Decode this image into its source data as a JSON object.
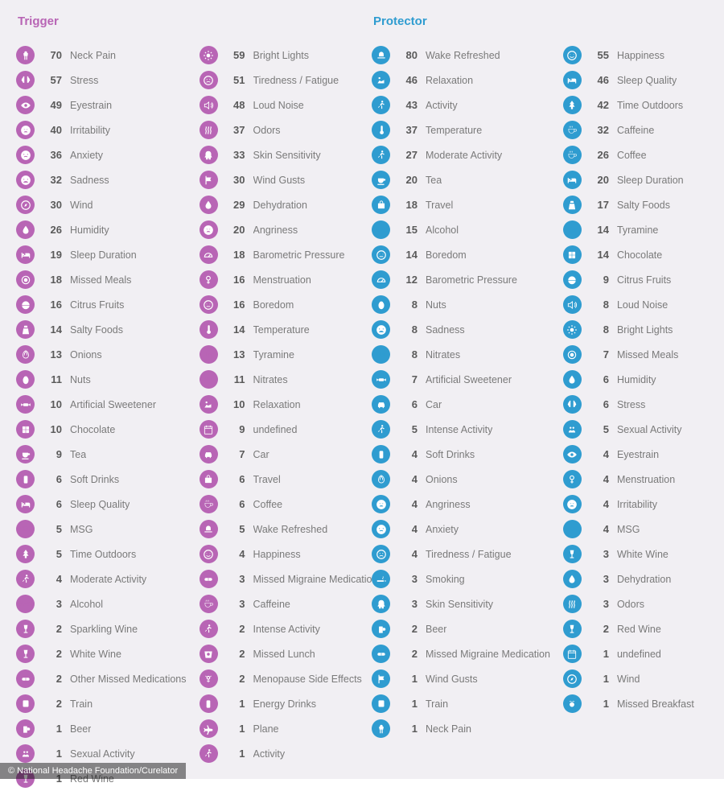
{
  "background_color": "#f1eff3",
  "credit": "© National Headache Foundation/Curelator",
  "icons": {
    "neck": "<svg viewBox='0 0 24 24' fill='#fff'><path d='M12 3a3 3 0 013 3v1h2l-1 6h-1v8h-2v-8h-2v8h-2v-8H8l-1-6h2V6a3 3 0 013-3z'/></svg>",
    "brain": "<svg viewBox='0 0 24 24' fill='#fff'><path d='M9 3a3 3 0 00-3 3 3 3 0 00-2 3 3 3 0 001 5 3 3 0 003 3h1V3zm6 0v14h1a3 3 0 003-3 3 3 0 001-5 3 3 0 00-2-3 3 3 0 00-3-3z'/></svg>",
    "eye": "<svg viewBox='0 0 24 24' fill='#fff'><path d='M12 6C6 6 2 12 2 12s4 6 10 6 10-6 10-6-4-6-10-6zm0 9a3 3 0 110-6 3 3 0 010 6z'/></svg>",
    "anger": "<svg viewBox='0 0 24 24' fill='#fff'><path d='M12 2a10 10 0 100 20 10 10 0 000-20zM7 9l4 1-1 1-3-2zm10 0l-3 2-1-1 4-1zm-9 7c1-2 3-2 4-2s3 0 4 2H8z'/></svg>",
    "anxious": "<svg viewBox='0 0 24 24' fill='#fff'><path d='M12 2a10 10 0 100 20 10 10 0 000-20zM8 9a1 1 0 110 2 1 1 0 010-2zm8 0a1 1 0 110 2 1 1 0 010-2zm-8 6c2-2 6-2 8 0l-1 1c-1-1-5-1-6 0z'/></svg>",
    "sad": "<svg viewBox='0 0 24 24' fill='#fff'><path d='M12 2a10 10 0 100 20 10 10 0 000-20zM8 9a1 1 0 110 2 1 1 0 010-2zm8 0a1 1 0 110 2 1 1 0 010-2zm-9 8c1-3 4-3 5-3s4 0 5 3H7z'/></svg>",
    "wind": "<svg viewBox='0 0 24 24' fill='#fff'><path d='M4 8h10a3 3 0 10-3-3h2a1 1 0 111 1H4zm0 4h14a3 3 0 11-3 3h2a1 1 0 101-1H4zm0 4h7a2 2 0 11-2 2h2v-0H4z'/></svg>",
    "drop": "<svg viewBox='0 0 24 24' fill='#fff'><path d='M12 3s-6 7-6 11a6 6 0 1012 0c0-4-6-11-6-11z'/></svg>",
    "bed": "<svg viewBox='0 0 24 24' fill='#fff'><path d='M3 7v11h2v-3h14v3h2v-7a3 3 0 00-3-3h-7v4H5V7z M7 9a2 2 0 110 4 2 2 0 010-4z'/></svg>",
    "plate": "<svg viewBox='0 0 24 24' fill='#fff'><circle cx='12' cy='12' r='8' stroke='#fff' fill='none' stroke-width='2'/><circle cx='12' cy='12' r='4'/></svg>",
    "citrus": "<svg viewBox='0 0 24 24' fill='#fff'><path d='M12 4a8 8 0 018 8H4a8 8 0 018-8zM4 13h16a8 8 0 01-16 0z'/></svg>",
    "salt": "<svg viewBox='0 0 24 24' fill='#fff'><path d='M9 3h6l1 4H8zM7 9h10l2 12H5z'/></svg>",
    "onion": "<svg viewBox='0 0 24 24' fill='#fff'><path d='M12 3c4 2 6 6 6 10a6 6 0 11-12 0c0-4 2-8 6-10zm0 2c-2 2-3 5-3 8m3-8c2 2 3 5 3 8' stroke='#fff' fill='none' stroke-width='1.5'/></svg>",
    "nuts": "<svg viewBox='0 0 24 24' fill='#fff'><ellipse cx='12' cy='13' rx='6' ry='8'/><path d='M8 6c2-2 6-2 8 0z'/></svg>",
    "sweet": "<svg viewBox='0 0 24 24' fill='#fff'><rect x='6' y='9' width='12' height='6' rx='3'/><path d='M6 12l-4-3v6zm12 0l4-3v6z'/></svg>",
    "choc": "<svg viewBox='0 0 24 24' fill='#fff'><rect x='5' y='5' width='14' height='14' rx='1'/><path d='M5 12h14M12 5v14' stroke='currentColor' stroke-width='1'/></svg>",
    "tea": "<svg viewBox='0 0 24 24' fill='#fff'><path d='M5 8h12v4a6 6 0 01-12 0zm12 1h2a2 2 0 010 4h-2zM4 20h14v2H4z'/></svg>",
    "can": "<svg viewBox='0 0 24 24' fill='#fff'><rect x='8' y='4' width='8' height='16' rx='2'/></svg>",
    "text-msg": "MSG",
    "tree": "<svg viewBox='0 0 24 24' fill='#fff'><path d='M12 2l5 7h-3l4 6h-4v5h-4v-5H6l4-6H7z'/></svg>",
    "run": "<svg viewBox='0 0 24 24' fill='#fff'><circle cx='14' cy='4' r='2'/><path d='M12 7l-3 4 3 2v6h2v-5l-2-2 2-3 3 2 2-1-4-3z M8 13l-3 3 1 1 3-3z'/></svg>",
    "text-vol": "%vol",
    "wine": "<svg viewBox='0 0 24 24' fill='#fff'><path d='M8 3h8l-1 7a3 3 0 01-2 2v6h3v2H8v-2h3v-6a3 3 0 01-2-2z'/></svg>",
    "pills": "<svg viewBox='0 0 24 24' fill='#fff'><rect x='4' y='9' width='16' height='6' rx='3'/><path d='M12 9v6' stroke='currentColor'/></svg>",
    "train": "<svg viewBox='0 0 24 24' fill='#fff'><rect x='6' y='4' width='12' height='14' rx='2'/><circle cx='9' cy='15' r='1.5'/><circle cx='15' cy='15' r='1.5'/><path d='M7 20l-2 3m12-3l2 3'/></svg>",
    "beer": "<svg viewBox='0 0 24 24' fill='#fff'><rect x='7' y='6' width='8' height='14' rx='1'/><path d='M15 9h3a2 2 0 010 6h-3'/></svg>",
    "people": "<svg viewBox='0 0 24 24' fill='#fff'><circle cx='9' cy='8' r='2'/><circle cx='15' cy='8' r='2'/><path d='M5 18c0-3 2-5 4-5s4 2 4 5zm6 0c0-3 2-5 4-5s4 2 4 5z'/></svg>",
    "light": "<svg viewBox='0 0 24 24' fill='#fff'><circle cx='12' cy='12' r='4'/><path d='M12 2v3M12 19v3M2 12h3M19 12h3M5 5l2 2M17 17l2 2M19 5l-2 2M7 17l-2 2' stroke='#fff' stroke-width='2'/></svg>",
    "tired": "<svg viewBox='0 0 24 24' fill='#fff'><circle cx='12' cy='12' r='9' fill='none' stroke='#fff' stroke-width='2'/><path d='M8 10h2M14 10h2M8 16c2-2 6-2 8 0' stroke='#fff' stroke-width='1.5' fill='none'/></svg>",
    "sound": "<svg viewBox='0 0 24 24' fill='#fff'><path d='M4 9v6h4l5 4V5L8 9zM17 8a5 5 0 010 8M19 6a8 8 0 010 12' stroke='#fff' fill='none' stroke-width='1.5'/></svg>",
    "odor": "<svg viewBox='0 0 24 24' fill='#fff'><path d='M7 4c2 3-2 5 0 8s-2 5 0 8M12 4c2 3-2 5 0 8s-2 5 0 8M17 4c2 3-2 5 0 8s-2 5 0 8' stroke='#fff' fill='none' stroke-width='2'/></svg>",
    "skin": "<svg viewBox='0 0 24 24' fill='#fff'><path d='M12 3c4 0 6 3 6 6v4l2 3-3 1v4h-4v-3h-2v3H7v-4l-3-1 2-3V9c0-3 2-6 6-6z'/></svg>",
    "flag": "<svg viewBox='0 0 24 24' fill='#fff'><path d='M6 3v18h2v-7h10l-2-4 2-4H8V3z'/></svg>",
    "gauge": "<svg viewBox='0 0 24 24' fill='#fff'><path d='M4 16a8 8 0 1116 0z' fill='none' stroke='#fff' stroke-width='2'/><path d='M12 16l4-5' stroke='#fff' stroke-width='2'/></svg>",
    "female": "<svg viewBox='0 0 24 24' fill='#fff'><circle cx='12' cy='8' r='4' fill='none' stroke='#fff' stroke-width='2'/><path d='M12 12v8M9 17h6' stroke='#fff' stroke-width='2'/></svg>",
    "bored": "<svg viewBox='0 0 24 24' fill='#fff'><circle cx='12' cy='12' r='9' fill='none' stroke='#fff' stroke-width='2'/><path d='M8 10h1M15 10h1M8 15h8' stroke='#fff' stroke-width='1.5'/></svg>",
    "temp": "<svg viewBox='0 0 24 24' fill='#fff'><path d='M11 4a2 2 0 014 0v9a4 4 0 11-4 0z'/></svg>",
    "text-tyr": "Tyr",
    "text-ntr": "Ntr",
    "relax": "<svg viewBox='0 0 24 24' fill='#fff'><circle cx='8' cy='7' r='2'/><path d='M4 18l4-6 4 2 6-3v7z'/></svg>",
    "cal": "<svg viewBox='0 0 24 24' fill='#fff'><rect x='4' y='5' width='16' height='16' rx='1' fill='none' stroke='#fff' stroke-width='1.5'/><path d='M4 9h16M8 3v4M16 3v4' stroke='#fff' stroke-width='1.5'/></svg>",
    "car": "<svg viewBox='0 0 24 24' fill='#fff'><path d='M5 12l2-5h10l2 5v5h-2v2h-2v-2H9v2H7v-2H5z'/><circle cx='8' cy='15' r='1'/><circle cx='16' cy='15' r='1'/></svg>",
    "bag": "<svg viewBox='0 0 24 24' fill='#fff'><rect x='5' y='8' width='14' height='11' rx='1'/><path d='M9 8V6a3 3 0 016 0v2' fill='none' stroke='#fff' stroke-width='1.5'/></svg>",
    "coffee": "<svg viewBox='0 0 24 24' fill='#fff'><path d='M5 9h12v3a6 6 0 01-12 0zm12 0h2a2 2 0 010 5h-2zM7 3c1 1-1 2 0 3m3-3c1 1-1 2 0 3m3-3c1 1-1 2 0 3' stroke='#fff' fill='none'/></svg>",
    "wake": "<svg viewBox='0 0 24 24' fill='#fff'><path d='M4 16h16v2H4zM7 14V9a5 5 0 0110 0v5z'/></svg>",
    "happy": "<svg viewBox='0 0 24 24' fill='#fff'><circle cx='12' cy='12' r='9' fill='none' stroke='#fff' stroke-width='2'/><path d='M8 10h1M15 10h1M8 14c1 2 3 2 4 2s3 0 4-2' stroke='#fff' stroke-width='1.5' fill='none'/></svg>",
    "lunch": "<svg viewBox='0 0 24 24' fill='#fff'><path d='M4 6h16l-2 14H6z'/><circle cx='12' cy='12' r='3' fill='currentColor'/></svg>",
    "meno": "<svg viewBox='0 0 24 24' fill='#fff'><circle cx='12' cy='9' r='3' fill='none' stroke='#fff' stroke-width='2'/><path d='M12 12v7M9 16h6M6 5l2 2M18 5l-2 2' stroke='#fff' stroke-width='1.5'/></svg>",
    "plane": "<svg viewBox='0 0 24 24' fill='#fff'><path d='M21 12l-7-1-3-7h-2l2 7-5 1-2-2H2l2 4-2 4h2l2-2 5 1-2 7h2l3-7 7-1z'/></svg>",
    "smoke": "<svg viewBox='0 0 24 24' fill='#fff'><rect x='3' y='14' width='14' height='3'/><path d='M19 14v3M21 14v3M15 6c2 0 2 3 0 3s2 3 0 3' stroke='#fff' fill='none'/></svg>",
    "compass": "<svg viewBox='0 0 24 24' fill='#fff'><circle cx='12' cy='12' r='9' fill='none' stroke='#fff' stroke-width='2'/><path d='M15 9l-2 5-4 1 2-5z'/></svg>",
    "bfast": "<svg viewBox='0 0 24 24' fill='#fff'><circle cx='12' cy='13' r='5'/><path d='M7 7c1-2 3-2 4 0m2 0c1-2 3-2 4 0' stroke='#fff' fill='none'/></svg>"
  },
  "sections": [
    {
      "title": "Trigger",
      "title_color": "#b865b5",
      "icon_color": "#b865b5",
      "columns": [
        [
          {
            "v": 70,
            "l": "Neck Pain",
            "i": "neck"
          },
          {
            "v": 57,
            "l": "Stress",
            "i": "brain"
          },
          {
            "v": 49,
            "l": "Eyestrain",
            "i": "eye"
          },
          {
            "v": 40,
            "l": "Irritability",
            "i": "anger"
          },
          {
            "v": 36,
            "l": "Anxiety",
            "i": "anxious"
          },
          {
            "v": 32,
            "l": "Sadness",
            "i": "sad"
          },
          {
            "v": 30,
            "l": "Wind",
            "i": "compass"
          },
          {
            "v": 26,
            "l": "Humidity",
            "i": "drop"
          },
          {
            "v": 19,
            "l": "Sleep Duration",
            "i": "bed"
          },
          {
            "v": 18,
            "l": "Missed Meals",
            "i": "plate"
          },
          {
            "v": 16,
            "l": "Citrus Fruits",
            "i": "citrus"
          },
          {
            "v": 14,
            "l": "Salty Foods",
            "i": "salt"
          },
          {
            "v": 13,
            "l": "Onions",
            "i": "onion"
          },
          {
            "v": 11,
            "l": "Nuts",
            "i": "nuts"
          },
          {
            "v": 10,
            "l": "Artificial Sweetener",
            "i": "sweet"
          },
          {
            "v": 10,
            "l": "Chocolate",
            "i": "choc"
          },
          {
            "v": 9,
            "l": "Tea",
            "i": "tea"
          },
          {
            "v": 6,
            "l": "Soft Drinks",
            "i": "can"
          },
          {
            "v": 6,
            "l": "Sleep Quality",
            "i": "bed"
          },
          {
            "v": 5,
            "l": "MSG",
            "i": "text-msg"
          },
          {
            "v": 5,
            "l": "Time Outdoors",
            "i": "tree"
          },
          {
            "v": 4,
            "l": "Moderate Activity",
            "i": "run"
          },
          {
            "v": 3,
            "l": "Alcohol",
            "i": "text-vol"
          },
          {
            "v": 2,
            "l": "Sparkling Wine",
            "i": "wine"
          },
          {
            "v": 2,
            "l": "White Wine",
            "i": "wine"
          },
          {
            "v": 2,
            "l": "Other Missed Medications",
            "i": "pills"
          },
          {
            "v": 2,
            "l": "Train",
            "i": "train"
          },
          {
            "v": 1,
            "l": "Beer",
            "i": "beer"
          },
          {
            "v": 1,
            "l": "Sexual Activity",
            "i": "people"
          },
          {
            "v": 1,
            "l": "Red Wine",
            "i": "wine"
          }
        ],
        [
          {
            "v": 59,
            "l": "Bright Lights",
            "i": "light"
          },
          {
            "v": 51,
            "l": "Tiredness / Fatigue",
            "i": "tired"
          },
          {
            "v": 48,
            "l": "Loud Noise",
            "i": "sound"
          },
          {
            "v": 37,
            "l": "Odors",
            "i": "odor"
          },
          {
            "v": 33,
            "l": "Skin Sensitivity",
            "i": "skin"
          },
          {
            "v": 30,
            "l": "Wind Gusts",
            "i": "flag"
          },
          {
            "v": 29,
            "l": "Dehydration",
            "i": "drop"
          },
          {
            "v": 20,
            "l": "Angriness",
            "i": "anger"
          },
          {
            "v": 18,
            "l": "Barometric Pressure",
            "i": "gauge"
          },
          {
            "v": 16,
            "l": "Menstruation",
            "i": "female"
          },
          {
            "v": 16,
            "l": "Boredom",
            "i": "bored"
          },
          {
            "v": 14,
            "l": "Temperature",
            "i": "temp"
          },
          {
            "v": 13,
            "l": "Tyramine",
            "i": "text-tyr"
          },
          {
            "v": 11,
            "l": "Nitrates",
            "i": "text-ntr"
          },
          {
            "v": 10,
            "l": "Relaxation",
            "i": "relax"
          },
          {
            "v": 9,
            "l": "undefined",
            "i": "cal"
          },
          {
            "v": 7,
            "l": "Car",
            "i": "car"
          },
          {
            "v": 6,
            "l": "Travel",
            "i": "bag"
          },
          {
            "v": 6,
            "l": "Coffee",
            "i": "coffee"
          },
          {
            "v": 5,
            "l": "Wake Refreshed",
            "i": "wake"
          },
          {
            "v": 4,
            "l": "Happiness",
            "i": "happy"
          },
          {
            "v": 3,
            "l": "Missed Migraine Medication",
            "i": "pills"
          },
          {
            "v": 3,
            "l": "Caffeine",
            "i": "coffee"
          },
          {
            "v": 2,
            "l": "Intense Activity",
            "i": "run"
          },
          {
            "v": 2,
            "l": "Missed Lunch",
            "i": "lunch"
          },
          {
            "v": 2,
            "l": "Menopause Side Effects",
            "i": "meno"
          },
          {
            "v": 1,
            "l": "Energy Drinks",
            "i": "can"
          },
          {
            "v": 1,
            "l": "Plane",
            "i": "plane"
          },
          {
            "v": 1,
            "l": "Activity",
            "i": "run"
          }
        ]
      ]
    },
    {
      "title": "Protector",
      "title_color": "#2f9cd0",
      "icon_color": "#2f9cd0",
      "columns": [
        [
          {
            "v": 80,
            "l": "Wake Refreshed",
            "i": "wake"
          },
          {
            "v": 46,
            "l": "Relaxation",
            "i": "relax"
          },
          {
            "v": 43,
            "l": "Activity",
            "i": "run"
          },
          {
            "v": 37,
            "l": "Temperature",
            "i": "temp"
          },
          {
            "v": 27,
            "l": "Moderate Activity",
            "i": "run"
          },
          {
            "v": 20,
            "l": "Tea",
            "i": "tea"
          },
          {
            "v": 18,
            "l": "Travel",
            "i": "bag"
          },
          {
            "v": 15,
            "l": "Alcohol",
            "i": "text-vol"
          },
          {
            "v": 14,
            "l": "Boredom",
            "i": "bored"
          },
          {
            "v": 12,
            "l": "Barometric Pressure",
            "i": "gauge"
          },
          {
            "v": 8,
            "l": "Nuts",
            "i": "nuts"
          },
          {
            "v": 8,
            "l": "Sadness",
            "i": "sad"
          },
          {
            "v": 8,
            "l": "Nitrates",
            "i": "text-ntr"
          },
          {
            "v": 7,
            "l": "Artificial Sweetener",
            "i": "sweet"
          },
          {
            "v": 6,
            "l": "Car",
            "i": "car"
          },
          {
            "v": 5,
            "l": "Intense Activity",
            "i": "run"
          },
          {
            "v": 4,
            "l": "Soft Drinks",
            "i": "can"
          },
          {
            "v": 4,
            "l": "Onions",
            "i": "onion"
          },
          {
            "v": 4,
            "l": "Angriness",
            "i": "anger"
          },
          {
            "v": 4,
            "l": "Anxiety",
            "i": "anxious"
          },
          {
            "v": 4,
            "l": "Tiredness / Fatigue",
            "i": "tired"
          },
          {
            "v": 3,
            "l": "Smoking",
            "i": "smoke"
          },
          {
            "v": 3,
            "l": "Skin Sensitivity",
            "i": "skin"
          },
          {
            "v": 2,
            "l": "Beer",
            "i": "beer"
          },
          {
            "v": 2,
            "l": "Missed Migraine Medication",
            "i": "pills"
          },
          {
            "v": 1,
            "l": "Wind Gusts",
            "i": "flag"
          },
          {
            "v": 1,
            "l": "Train",
            "i": "train"
          },
          {
            "v": 1,
            "l": "Neck Pain",
            "i": "neck"
          }
        ],
        [
          {
            "v": 55,
            "l": "Happiness",
            "i": "happy"
          },
          {
            "v": 46,
            "l": "Sleep Quality",
            "i": "bed"
          },
          {
            "v": 42,
            "l": "Time Outdoors",
            "i": "tree"
          },
          {
            "v": 32,
            "l": "Caffeine",
            "i": "coffee"
          },
          {
            "v": 26,
            "l": "Coffee",
            "i": "coffee"
          },
          {
            "v": 20,
            "l": "Sleep Duration",
            "i": "bed"
          },
          {
            "v": 17,
            "l": "Salty Foods",
            "i": "salt"
          },
          {
            "v": 14,
            "l": "Tyramine",
            "i": "text-tyr"
          },
          {
            "v": 14,
            "l": "Chocolate",
            "i": "choc"
          },
          {
            "v": 9,
            "l": "Citrus Fruits",
            "i": "citrus"
          },
          {
            "v": 8,
            "l": "Loud Noise",
            "i": "sound"
          },
          {
            "v": 8,
            "l": "Bright Lights",
            "i": "light"
          },
          {
            "v": 7,
            "l": "Missed Meals",
            "i": "plate"
          },
          {
            "v": 6,
            "l": "Humidity",
            "i": "drop"
          },
          {
            "v": 6,
            "l": "Stress",
            "i": "brain"
          },
          {
            "v": 5,
            "l": "Sexual Activity",
            "i": "people"
          },
          {
            "v": 4,
            "l": "Eyestrain",
            "i": "eye"
          },
          {
            "v": 4,
            "l": "Menstruation",
            "i": "female"
          },
          {
            "v": 4,
            "l": "Irritability",
            "i": "anger"
          },
          {
            "v": 4,
            "l": "MSG",
            "i": "text-msg"
          },
          {
            "v": 3,
            "l": "White Wine",
            "i": "wine"
          },
          {
            "v": 3,
            "l": "Dehydration",
            "i": "drop"
          },
          {
            "v": 3,
            "l": "Odors",
            "i": "odor"
          },
          {
            "v": 2,
            "l": "Red Wine",
            "i": "wine"
          },
          {
            "v": 1,
            "l": "undefined",
            "i": "cal"
          },
          {
            "v": 1,
            "l": "Wind",
            "i": "compass"
          },
          {
            "v": 1,
            "l": "Missed Breakfast",
            "i": "bfast"
          }
        ]
      ]
    }
  ]
}
